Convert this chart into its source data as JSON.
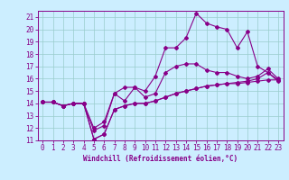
{
  "xlabel": "Windchill (Refroidissement éolien,°C)",
  "xlim": [
    -0.5,
    23.5
  ],
  "ylim": [
    11,
    21.5
  ],
  "xticks": [
    0,
    1,
    2,
    3,
    4,
    5,
    6,
    7,
    8,
    9,
    10,
    11,
    12,
    13,
    14,
    15,
    16,
    17,
    18,
    19,
    20,
    21,
    22,
    23
  ],
  "yticks": [
    11,
    12,
    13,
    14,
    15,
    16,
    17,
    18,
    19,
    20,
    21
  ],
  "bg_color": "#cceeff",
  "line_color": "#880088",
  "grid_color": "#99cccc",
  "line1_x": [
    0,
    1,
    2,
    3,
    4,
    5,
    6,
    7,
    8,
    9,
    10,
    11,
    12,
    13,
    14,
    15,
    16,
    17,
    18,
    19,
    20,
    21,
    22,
    23
  ],
  "line1_y": [
    14.1,
    14.1,
    13.8,
    14.0,
    14.0,
    11.8,
    12.2,
    14.8,
    15.3,
    15.3,
    15.0,
    16.2,
    18.5,
    18.5,
    19.3,
    21.3,
    20.5,
    20.2,
    20.0,
    18.5,
    19.8,
    17.0,
    16.5,
    15.8
  ],
  "line2_x": [
    0,
    1,
    2,
    3,
    4,
    5,
    6,
    7,
    8,
    9,
    10,
    11,
    12,
    13,
    14,
    15,
    16,
    17,
    18,
    19,
    20,
    21,
    22,
    23
  ],
  "line2_y": [
    14.1,
    14.1,
    13.8,
    14.0,
    14.0,
    12.0,
    12.5,
    14.8,
    14.2,
    15.3,
    14.5,
    14.8,
    16.5,
    17.0,
    17.2,
    17.2,
    16.7,
    16.5,
    16.5,
    16.2,
    16.0,
    16.2,
    16.8,
    16.0
  ],
  "line3_x": [
    0,
    1,
    2,
    3,
    4,
    5,
    6,
    7,
    8,
    9,
    10,
    11,
    12,
    13,
    14,
    15,
    16,
    17,
    18,
    19,
    20,
    21,
    22,
    23
  ],
  "line3_y": [
    14.1,
    14.1,
    13.8,
    14.0,
    14.0,
    11.1,
    11.5,
    13.5,
    13.8,
    14.0,
    14.0,
    14.2,
    14.5,
    14.8,
    15.0,
    15.2,
    15.4,
    15.5,
    15.6,
    15.6,
    15.7,
    15.8,
    15.9,
    15.9
  ],
  "line4_x": [
    0,
    1,
    2,
    3,
    4,
    5,
    6,
    7,
    8,
    9,
    10,
    11,
    12,
    13,
    14,
    15,
    16,
    17,
    18,
    19,
    20,
    21,
    22,
    23
  ],
  "line4_y": [
    14.1,
    14.1,
    13.8,
    14.0,
    14.0,
    11.1,
    11.5,
    13.5,
    13.8,
    14.0,
    14.0,
    14.2,
    14.5,
    14.8,
    15.0,
    15.2,
    15.4,
    15.5,
    15.6,
    15.7,
    15.8,
    16.0,
    16.5,
    15.9
  ],
  "marker_size": 2.0,
  "linewidth": 0.8,
  "tick_fontsize": 5.5,
  "xlabel_fontsize": 5.5
}
